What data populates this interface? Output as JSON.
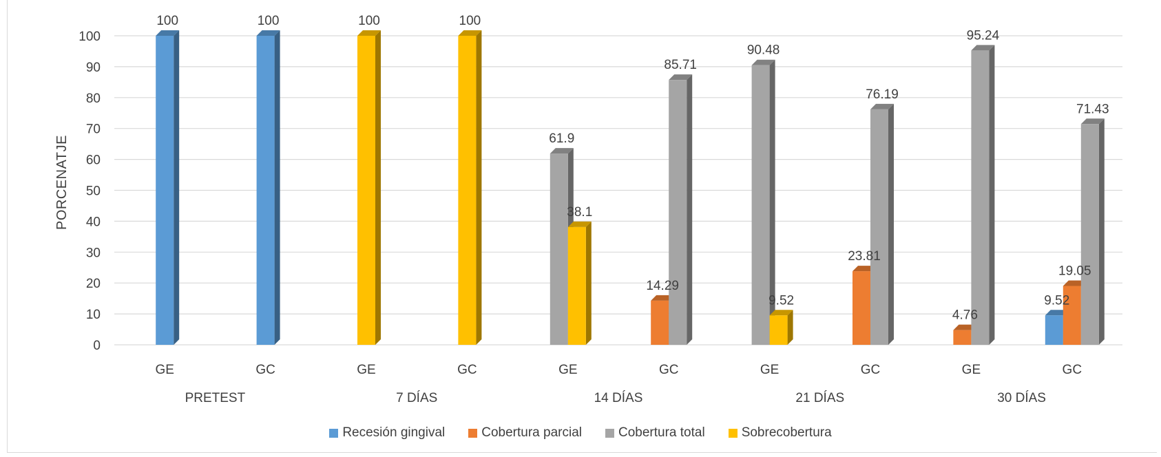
{
  "chart_data": {
    "type": "bar",
    "title": "",
    "ylabel": "PORCENATJE",
    "xlabel": "",
    "ylim": [
      0,
      100
    ],
    "yticks": [
      0,
      10,
      20,
      30,
      40,
      50,
      60,
      70,
      80,
      90,
      100
    ],
    "grid": true,
    "legend_position": "bottom",
    "groups": [
      "PRETEST",
      "7 DÍAS",
      "14 DÍAS",
      "21 DÍAS",
      "30 DÍAS"
    ],
    "categories": [
      "GE",
      "GC",
      "GE",
      "GC",
      "GE",
      "GC",
      "GE",
      "GC",
      "GE",
      "GC"
    ],
    "series": [
      {
        "name": "Recesión gingival",
        "color": "#5b9bd5",
        "values": [
          100,
          100,
          null,
          null,
          null,
          null,
          null,
          null,
          null,
          9.52
        ]
      },
      {
        "name": "Cobertura parcial",
        "color": "#ed7d31",
        "values": [
          null,
          null,
          null,
          null,
          null,
          14.29,
          null,
          23.81,
          4.76,
          19.05
        ]
      },
      {
        "name": "Cobertura total",
        "color": "#a5a5a5",
        "values": [
          null,
          null,
          null,
          null,
          61.9,
          85.71,
          90.48,
          76.19,
          95.24,
          71.43
        ]
      },
      {
        "name": "Sobrecobertura",
        "color": "#ffc000",
        "values": [
          null,
          null,
          100,
          100,
          38.1,
          null,
          9.52,
          null,
          null,
          null
        ]
      }
    ]
  }
}
